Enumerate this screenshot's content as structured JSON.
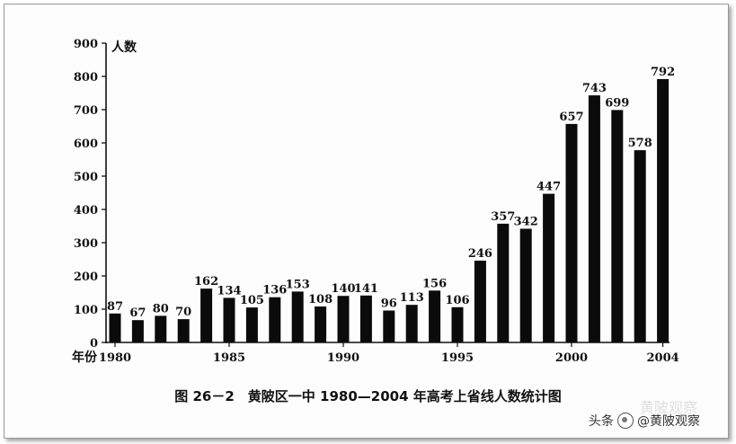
{
  "chart_data": {
    "type": "bar",
    "title": "图 26－2　黄陂区一中 1980—2004 年高考上省线人数统计图",
    "ylabel": "人数",
    "xlabel": "年份",
    "ylim": [
      0,
      900
    ],
    "yticks": [
      0,
      100,
      200,
      300,
      400,
      500,
      600,
      700,
      800,
      900
    ],
    "xtick_labels": [
      "1980",
      "1985",
      "1990",
      "1995",
      "2000",
      "2004"
    ],
    "categories": [
      "1980",
      "1981",
      "1982",
      "1983",
      "1984",
      "1985",
      "1986",
      "1987",
      "1988",
      "1989",
      "1990",
      "1991",
      "1992",
      "1993",
      "1994",
      "1995",
      "1996",
      "1997",
      "1998",
      "1999",
      "2000",
      "2001",
      "2002",
      "2003",
      "2004"
    ],
    "values": [
      87,
      67,
      80,
      70,
      162,
      134,
      105,
      136,
      153,
      108,
      140,
      141,
      96,
      113,
      156,
      106,
      246,
      357,
      342,
      447,
      657,
      743,
      699,
      578,
      792
    ],
    "grid": false,
    "bar_color": "#0b0b0b"
  },
  "watermark": {
    "prefix": "头条",
    "handle": "@黄陂观察",
    "ghost": "黄陂观察"
  }
}
